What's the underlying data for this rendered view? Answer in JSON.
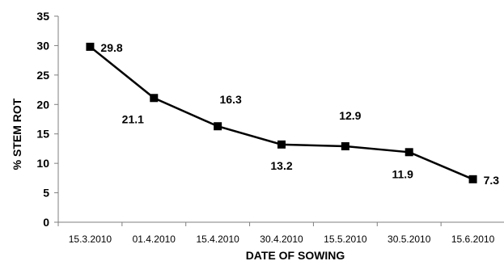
{
  "chart_data": {
    "type": "line",
    "title": "",
    "xlabel": "DATE OF SOWING",
    "ylabel": "% STEM ROT",
    "categories": [
      "15.3.2010",
      "01.4.2010",
      "15.4.2010",
      "30.4.2010",
      "15.5.2010",
      "30.5.2010",
      "15.6.2010"
    ],
    "series": [
      {
        "values": [
          29.8,
          21.1,
          16.3,
          13.2,
          12.9,
          11.9,
          7.3
        ],
        "data_labels": [
          "29.8",
          "21.1",
          "16.3",
          "13.2",
          "12.9",
          "11.9",
          "7.3"
        ],
        "color": "#000000",
        "marker": "square"
      }
    ],
    "ylim": [
      0,
      35
    ],
    "yticks": [
      "0",
      "5",
      "10",
      "15",
      "20",
      "25",
      "30",
      "35"
    ],
    "grid": false,
    "legend": "none"
  }
}
